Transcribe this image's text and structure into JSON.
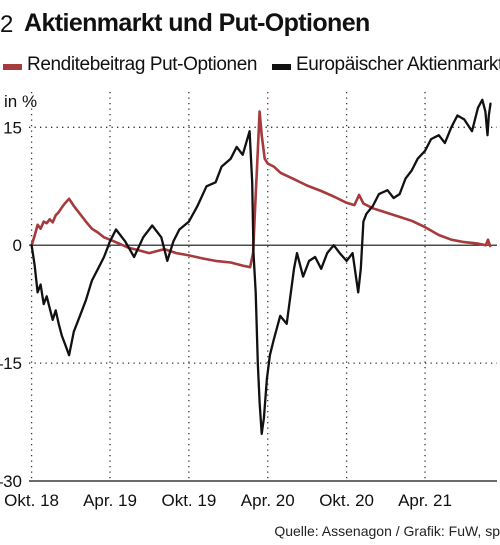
{
  "header": {
    "number": "2",
    "title": "Aktienmarkt und Put-Optionen"
  },
  "colors": {
    "put": "#a63a3d",
    "market": "#111111",
    "grid": "#333333"
  },
  "footer": {
    "source": "Quelle: Assenagon / Grafik: FuW, sp"
  },
  "chart_data": {
    "type": "line",
    "title": "Aktienmarkt und Put-Optionen",
    "ylabel": "in %",
    "xlabel": "",
    "ylim": [
      -30,
      20
    ],
    "xlim": [
      "2018-09-25",
      "2021-09-15"
    ],
    "grid": true,
    "grid_style": "dotted",
    "legend_position": "top",
    "yticks": [
      {
        "value": 15,
        "label": "15"
      },
      {
        "value": 0,
        "label": "0"
      },
      {
        "value": -15,
        "label": "–15"
      },
      {
        "value": -30,
        "label": "–30"
      }
    ],
    "xticks": [
      {
        "date": "2018-10-01",
        "label": "Okt. 18"
      },
      {
        "date": "2019-04-01",
        "label": "Apr. 19"
      },
      {
        "date": "2019-10-01",
        "label": "Okt. 19"
      },
      {
        "date": "2020-04-01",
        "label": "Apr. 20"
      },
      {
        "date": "2020-10-01",
        "label": "Okt. 20"
      },
      {
        "date": "2021-04-01",
        "label": "Apr. 21"
      }
    ],
    "series": [
      {
        "name": "Renditebeitrag Put-Optionen",
        "color": "#a63a3d",
        "points": [
          [
            "2018-10-01",
            0
          ],
          [
            "2018-10-08",
            1.2
          ],
          [
            "2018-10-15",
            2.6
          ],
          [
            "2018-10-22",
            2.1
          ],
          [
            "2018-10-29",
            3.0
          ],
          [
            "2018-11-05",
            2.8
          ],
          [
            "2018-11-12",
            3.3
          ],
          [
            "2018-11-19",
            2.9
          ],
          [
            "2018-11-26",
            3.8
          ],
          [
            "2018-12-03",
            4.2
          ],
          [
            "2018-12-10",
            4.8
          ],
          [
            "2018-12-17",
            5.3
          ],
          [
            "2018-12-27",
            5.9
          ],
          [
            "2019-01-07",
            5.0
          ],
          [
            "2019-01-21",
            4.0
          ],
          [
            "2019-02-04",
            3.0
          ],
          [
            "2019-02-18",
            2.1
          ],
          [
            "2019-03-04",
            1.6
          ],
          [
            "2019-03-18",
            1.0
          ],
          [
            "2019-04-01",
            0.7
          ],
          [
            "2019-04-22",
            0.2
          ],
          [
            "2019-05-13",
            -0.3
          ],
          [
            "2019-06-03",
            -0.6
          ],
          [
            "2019-07-01",
            -1.0
          ],
          [
            "2019-08-05",
            -0.5
          ],
          [
            "2019-09-02",
            -1.0
          ],
          [
            "2019-10-01",
            -1.3
          ],
          [
            "2019-11-04",
            -1.7
          ],
          [
            "2019-12-02",
            -2.0
          ],
          [
            "2020-01-06",
            -2.2
          ],
          [
            "2020-02-03",
            -2.6
          ],
          [
            "2020-02-20",
            -2.8
          ],
          [
            "2020-02-27",
            -1.0
          ],
          [
            "2020-03-03",
            5.0
          ],
          [
            "2020-03-09",
            12.0
          ],
          [
            "2020-03-13",
            17.0
          ],
          [
            "2020-03-18",
            14.0
          ],
          [
            "2020-03-25",
            11.0
          ],
          [
            "2020-04-01",
            10.4
          ],
          [
            "2020-04-15",
            10.0
          ],
          [
            "2020-05-01",
            9.2
          ],
          [
            "2020-06-01",
            8.4
          ],
          [
            "2020-07-01",
            7.6
          ],
          [
            "2020-08-03",
            6.9
          ],
          [
            "2020-09-01",
            6.2
          ],
          [
            "2020-10-01",
            5.4
          ],
          [
            "2020-10-19",
            5.1
          ],
          [
            "2020-10-30",
            6.4
          ],
          [
            "2020-11-09",
            5.3
          ],
          [
            "2020-12-01",
            4.7
          ],
          [
            "2021-01-04",
            4.1
          ],
          [
            "2021-02-01",
            3.6
          ],
          [
            "2021-03-01",
            3.1
          ],
          [
            "2021-04-01",
            2.3
          ],
          [
            "2021-05-03",
            1.3
          ],
          [
            "2021-06-01",
            0.7
          ],
          [
            "2021-07-01",
            0.4
          ],
          [
            "2021-08-02",
            0.2
          ],
          [
            "2021-08-20",
            0.0
          ],
          [
            "2021-08-25",
            0.7
          ],
          [
            "2021-08-30",
            -0.1
          ]
        ]
      },
      {
        "name": "Europäischer Aktienmarkt",
        "color": "#111111",
        "points": [
          [
            "2018-10-01",
            0
          ],
          [
            "2018-10-08",
            -2.5
          ],
          [
            "2018-10-15",
            -6.0
          ],
          [
            "2018-10-22",
            -5.0
          ],
          [
            "2018-10-29",
            -7.5
          ],
          [
            "2018-11-05",
            -6.5
          ],
          [
            "2018-11-12",
            -8.0
          ],
          [
            "2018-11-19",
            -9.5
          ],
          [
            "2018-11-26",
            -8.3
          ],
          [
            "2018-12-03",
            -10.0
          ],
          [
            "2018-12-10",
            -11.5
          ],
          [
            "2018-12-17",
            -12.5
          ],
          [
            "2018-12-27",
            -14.0
          ],
          [
            "2019-01-07",
            -11.0
          ],
          [
            "2019-01-21",
            -9.0
          ],
          [
            "2019-02-04",
            -7.0
          ],
          [
            "2019-02-18",
            -4.5
          ],
          [
            "2019-03-04",
            -3.0
          ],
          [
            "2019-03-18",
            -1.5
          ],
          [
            "2019-04-01",
            0.5
          ],
          [
            "2019-04-15",
            2.0
          ],
          [
            "2019-05-06",
            0.5
          ],
          [
            "2019-05-27",
            -1.5
          ],
          [
            "2019-06-17",
            1.0
          ],
          [
            "2019-07-08",
            2.5
          ],
          [
            "2019-07-29",
            1.0
          ],
          [
            "2019-08-12",
            -2.0
          ],
          [
            "2019-08-26",
            0.5
          ],
          [
            "2019-09-09",
            2.0
          ],
          [
            "2019-10-01",
            3.0
          ],
          [
            "2019-10-21",
            5.0
          ],
          [
            "2019-11-11",
            7.5
          ],
          [
            "2019-12-02",
            8.0
          ],
          [
            "2019-12-16",
            10.0
          ],
          [
            "2020-01-06",
            11.0
          ],
          [
            "2020-01-20",
            12.5
          ],
          [
            "2020-02-03",
            11.5
          ],
          [
            "2020-02-19",
            14.5
          ],
          [
            "2020-02-25",
            8.0
          ],
          [
            "2020-02-28",
            -1.0
          ],
          [
            "2020-03-04",
            -6.0
          ],
          [
            "2020-03-09",
            -15.0
          ],
          [
            "2020-03-13",
            -20.0
          ],
          [
            "2020-03-18",
            -24.0
          ],
          [
            "2020-03-23",
            -22.0
          ],
          [
            "2020-03-30",
            -17.0
          ],
          [
            "2020-04-06",
            -14.0
          ],
          [
            "2020-04-15",
            -12.0
          ],
          [
            "2020-04-30",
            -9.0
          ],
          [
            "2020-05-15",
            -10.0
          ],
          [
            "2020-06-01",
            -3.0
          ],
          [
            "2020-06-08",
            -1.0
          ],
          [
            "2020-06-22",
            -4.0
          ],
          [
            "2020-07-06",
            -2.0
          ],
          [
            "2020-07-20",
            -1.5
          ],
          [
            "2020-08-03",
            -3.0
          ],
          [
            "2020-08-17",
            -1.0
          ],
          [
            "2020-09-01",
            0.0
          ],
          [
            "2020-09-15",
            -1.0
          ],
          [
            "2020-10-01",
            -2.0
          ],
          [
            "2020-10-15",
            -1.0
          ],
          [
            "2020-10-28",
            -6.0
          ],
          [
            "2020-11-03",
            -3.0
          ],
          [
            "2020-11-09",
            3.0
          ],
          [
            "2020-11-16",
            4.0
          ],
          [
            "2020-12-01",
            5.0
          ],
          [
            "2020-12-15",
            6.5
          ],
          [
            "2021-01-04",
            7.0
          ],
          [
            "2021-01-18",
            6.0
          ],
          [
            "2021-02-01",
            6.5
          ],
          [
            "2021-02-15",
            8.5
          ],
          [
            "2021-03-01",
            9.5
          ],
          [
            "2021-03-15",
            11.0
          ],
          [
            "2021-04-01",
            12.0
          ],
          [
            "2021-04-15",
            13.5
          ],
          [
            "2021-05-03",
            14.0
          ],
          [
            "2021-05-17",
            13.0
          ],
          [
            "2021-06-01",
            15.0
          ],
          [
            "2021-06-15",
            16.5
          ],
          [
            "2021-07-01",
            16.0
          ],
          [
            "2021-07-19",
            14.5
          ],
          [
            "2021-08-02",
            17.5
          ],
          [
            "2021-08-12",
            18.5
          ],
          [
            "2021-08-19",
            17.0
          ],
          [
            "2021-08-24",
            14.0
          ],
          [
            "2021-08-27",
            16.5
          ],
          [
            "2021-08-31",
            18.0
          ]
        ]
      }
    ]
  }
}
